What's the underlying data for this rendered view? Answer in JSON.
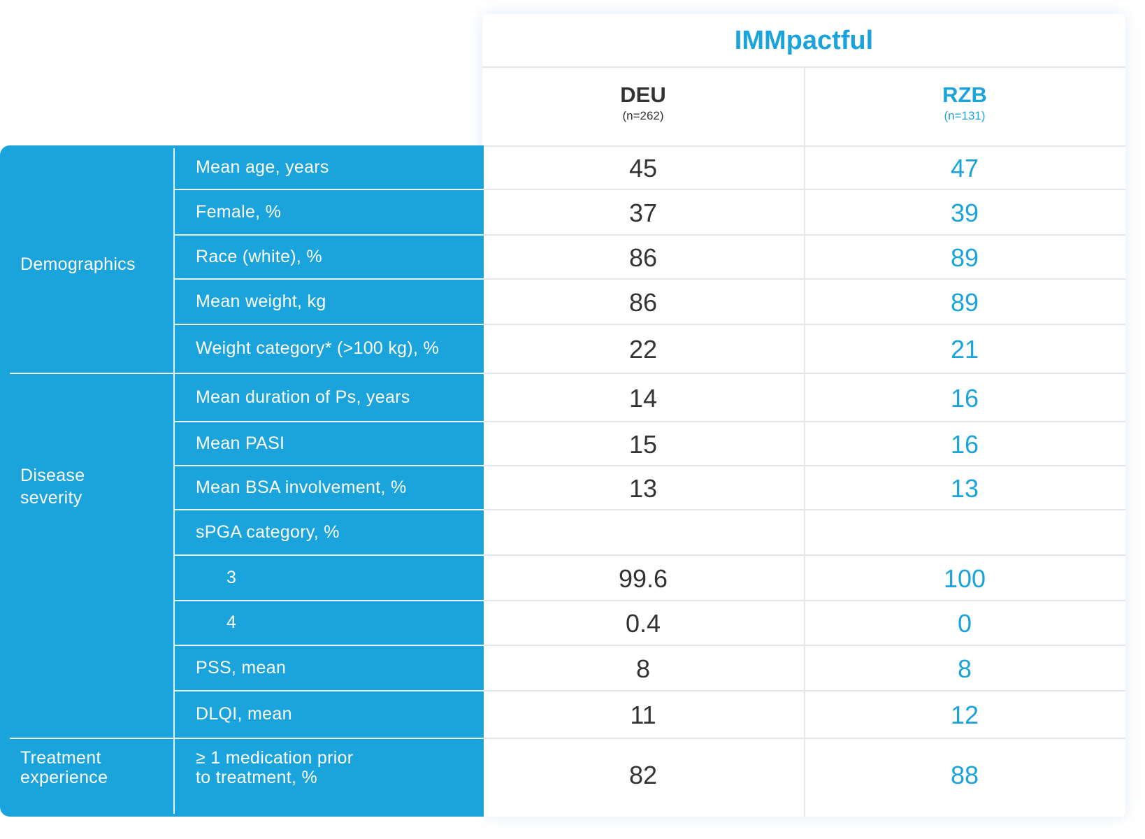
{
  "study": {
    "title": "IMMpactful"
  },
  "columns": [
    {
      "name": "DEU",
      "n": "(n=262)"
    },
    {
      "name": "RZB",
      "n": "(n=131)"
    }
  ],
  "categories": [
    {
      "label": "Demographics"
    },
    {
      "label": "Disease severity"
    },
    {
      "label": "Treatment experience"
    }
  ],
  "rows": [
    {
      "label": "Mean age, years",
      "deu": "45",
      "rzb": "47"
    },
    {
      "label": "Female, %",
      "deu": "37",
      "rzb": "39"
    },
    {
      "label": "Race (white), %",
      "deu": "86",
      "rzb": "89"
    },
    {
      "label": "Mean weight, kg",
      "deu": "86",
      "rzb": "89"
    },
    {
      "label": "Weight category* (>100 kg), %",
      "deu": "22",
      "rzb": "21"
    },
    {
      "label": "Mean duration of Ps, years",
      "deu": "14",
      "rzb": "16"
    },
    {
      "label": "Mean PASI",
      "deu": "15",
      "rzb": "16"
    },
    {
      "label": "Mean BSA involvement, %",
      "deu": "13",
      "rzb": "13"
    },
    {
      "label": "sPGA category, %",
      "deu": "",
      "rzb": ""
    },
    {
      "label": "3",
      "deu": "99.6",
      "rzb": "100"
    },
    {
      "label": "4",
      "deu": "0.4",
      "rzb": "0"
    },
    {
      "label": "PSS, mean",
      "deu": "8",
      "rzb": "8"
    },
    {
      "label": "DLQI, mean",
      "deu": "11",
      "rzb": "12"
    },
    {
      "label": "≥ 1 medication prior to treatment, %",
      "deu": "82",
      "rzb": "88"
    }
  ],
  "colors": {
    "accent": "#1ba3dc",
    "text_dark": "#333333",
    "grid": "#e3e7ea"
  }
}
